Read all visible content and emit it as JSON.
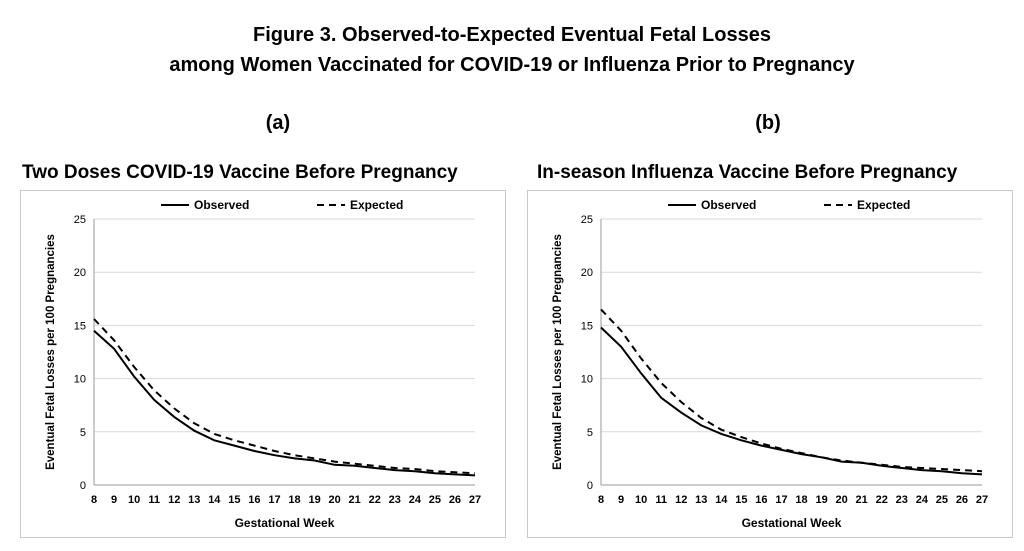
{
  "figure": {
    "title_line1": "Figure 3. Observed-to-Expected Eventual Fetal Losses",
    "title_line2": "among Women Vaccinated for COVID-19 or Influenza Prior to Pregnancy"
  },
  "chart_data": [
    {
      "type": "line",
      "panel_label": "(a)",
      "title": "Two Doses COVID-19 Vaccine Before Pregnancy",
      "xlabel": "Gestational Week",
      "ylabel": "Eventual Fetal Losses per 100 Pregnancies",
      "x": [
        8,
        9,
        10,
        11,
        12,
        13,
        14,
        15,
        16,
        17,
        18,
        19,
        20,
        21,
        22,
        23,
        24,
        25,
        26,
        27
      ],
      "ylim": [
        0,
        25
      ],
      "yticks": [
        0,
        5,
        10,
        15,
        20,
        25
      ],
      "grid": true,
      "legend_position": "top",
      "series": [
        {
          "name": "Observed",
          "style": "solid",
          "values": [
            14.5,
            12.8,
            10.2,
            8.0,
            6.4,
            5.1,
            4.2,
            3.7,
            3.2,
            2.8,
            2.5,
            2.3,
            1.9,
            1.8,
            1.6,
            1.4,
            1.3,
            1.1,
            1.0,
            0.9
          ]
        },
        {
          "name": "Expected",
          "style": "dashed",
          "values": [
            15.6,
            13.6,
            11.1,
            8.9,
            7.2,
            5.8,
            4.8,
            4.2,
            3.7,
            3.2,
            2.8,
            2.5,
            2.2,
            2.0,
            1.8,
            1.6,
            1.5,
            1.3,
            1.2,
            1.1
          ]
        }
      ]
    },
    {
      "type": "line",
      "panel_label": "(b)",
      "title": "In-season Influenza Vaccine Before Pregnancy",
      "xlabel": "Gestational Week",
      "ylabel": "Eventual Fetal Losses per 100 Pregnancies",
      "x": [
        8,
        9,
        10,
        11,
        12,
        13,
        14,
        15,
        16,
        17,
        18,
        19,
        20,
        21,
        22,
        23,
        24,
        25,
        26,
        27
      ],
      "ylim": [
        0,
        25
      ],
      "yticks": [
        0,
        5,
        10,
        15,
        20,
        25
      ],
      "grid": true,
      "legend_position": "top",
      "series": [
        {
          "name": "Observed",
          "style": "solid",
          "values": [
            14.8,
            13.0,
            10.5,
            8.2,
            6.8,
            5.6,
            4.8,
            4.2,
            3.7,
            3.3,
            2.9,
            2.6,
            2.2,
            2.1,
            1.8,
            1.6,
            1.4,
            1.3,
            1.1,
            1.0
          ]
        },
        {
          "name": "Expected",
          "style": "dashed",
          "values": [
            16.5,
            14.5,
            11.9,
            9.6,
            7.8,
            6.3,
            5.2,
            4.5,
            3.9,
            3.4,
            3.0,
            2.6,
            2.3,
            2.1,
            1.9,
            1.7,
            1.6,
            1.5,
            1.4,
            1.3
          ]
        }
      ]
    }
  ]
}
